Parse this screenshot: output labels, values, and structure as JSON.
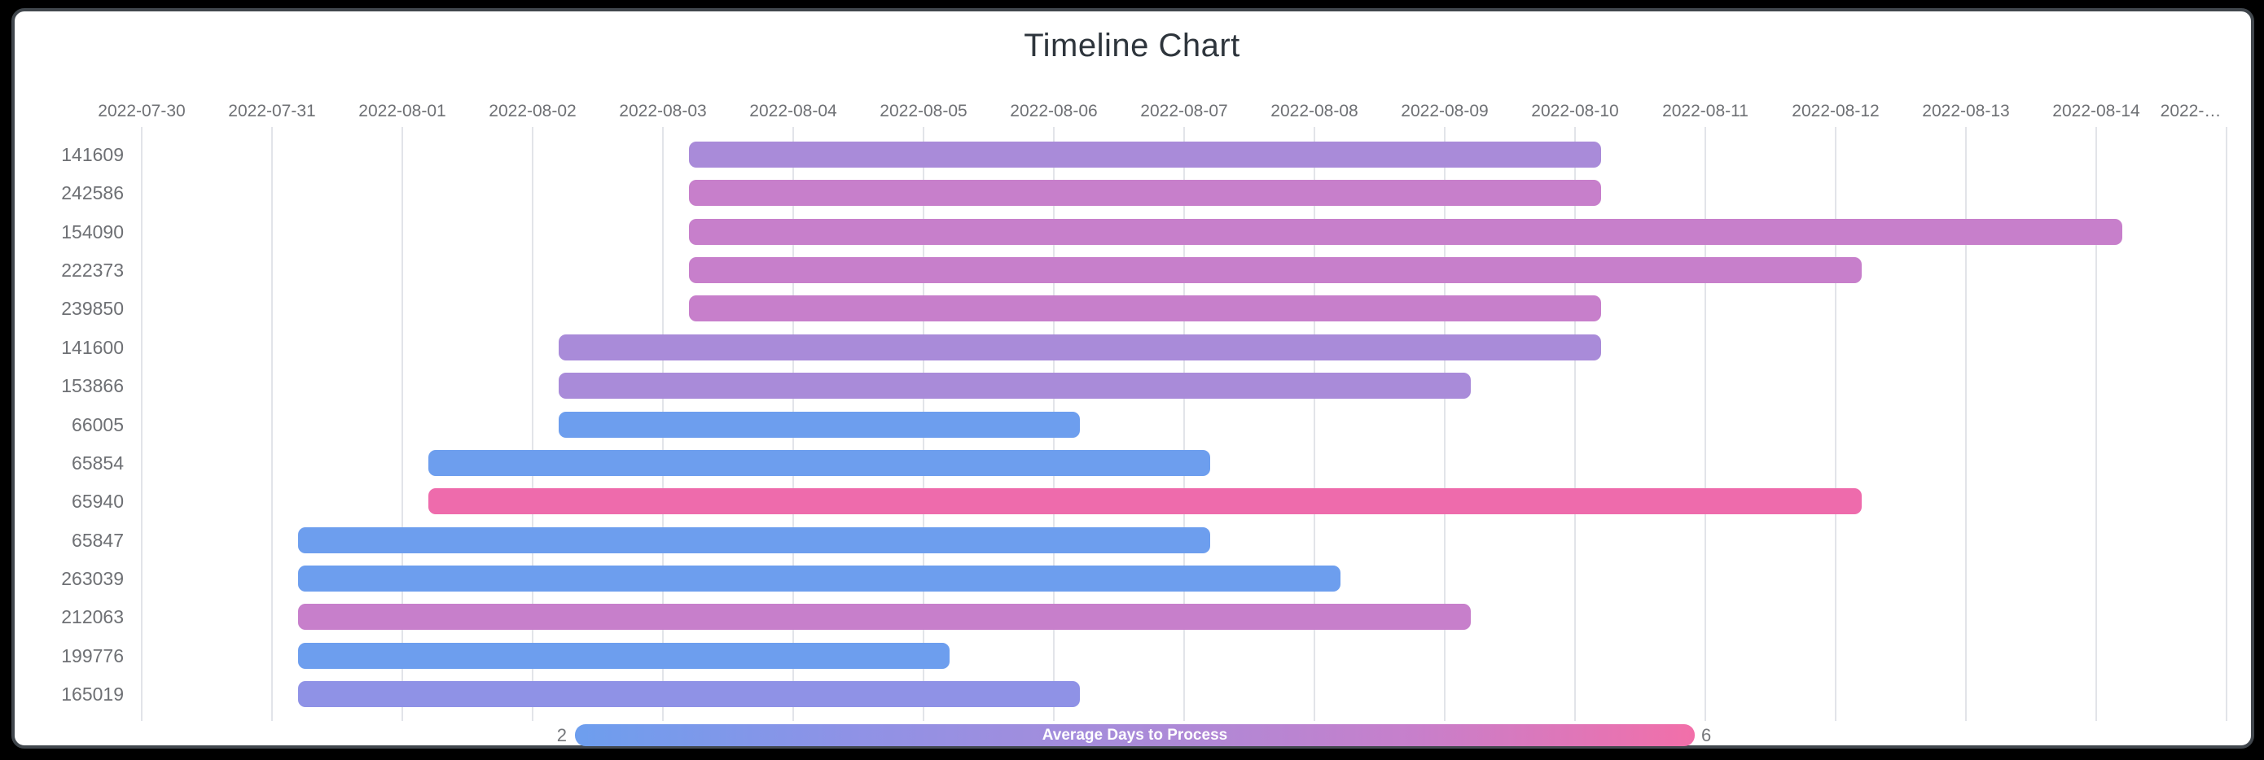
{
  "title": "Timeline Chart",
  "legend": {
    "min_label": "2",
    "max_label": "6",
    "title": "Average Days to Process",
    "gradient": [
      "#6d9eee",
      "#8f92e6",
      "#a98bd9",
      "#c77fcb",
      "#f26fa9"
    ]
  },
  "colors": {
    "page_bg": "#000000",
    "card_bg": "#ffffff",
    "card_border": "#41474d",
    "grid": "#e2e4e9",
    "axis_text": "#6e7074",
    "title_text": "#2e353c",
    "legend_value_text": "#75777b",
    "legend_title_text": "#ffffff",
    "bar_blue": "#6d9eee",
    "bar_violet": "#8f92e6",
    "bar_purple": "#a98bd9",
    "bar_orchid": "#c77fcb",
    "bar_pink": "#ee6bac"
  },
  "chart_data": {
    "type": "timeline",
    "title": "Timeline Chart",
    "x_ticks": [
      {
        "label": "2022-07-30"
      },
      {
        "label": "2022-07-31"
      },
      {
        "label": "2022-08-01"
      },
      {
        "label": "2022-08-02"
      },
      {
        "label": "2022-08-03"
      },
      {
        "label": "2022-08-04"
      },
      {
        "label": "2022-08-05"
      },
      {
        "label": "2022-08-06"
      },
      {
        "label": "2022-08-07"
      },
      {
        "label": "2022-08-08"
      },
      {
        "label": "2022-08-09"
      },
      {
        "label": "2022-08-10"
      },
      {
        "label": "2022-08-11"
      },
      {
        "label": "2022-08-12"
      },
      {
        "label": "2022-08-13"
      },
      {
        "label": "2022-08-14"
      },
      {
        "label": "2022-…",
        "truncated": true
      }
    ],
    "colorbar": {
      "title": "Average Days to Process",
      "min": 2,
      "max": 6
    },
    "bars": [
      {
        "label": "141609",
        "start": "2022-08-03",
        "end": "2022-08-10",
        "duration_days": 7,
        "start_day_offset": 4.2,
        "end_day_offset": 11.2,
        "color": "#a98bd9",
        "avg_days_to_process_est": 4
      },
      {
        "label": "242586",
        "start": "2022-08-03",
        "end": "2022-08-10",
        "duration_days": 7,
        "start_day_offset": 4.2,
        "end_day_offset": 11.2,
        "color": "#c77fcb",
        "avg_days_to_process_est": 5
      },
      {
        "label": "154090",
        "start": "2022-08-03",
        "end": "2022-08-14",
        "duration_days": 11,
        "start_day_offset": 4.2,
        "end_day_offset": 15.2,
        "color": "#c77fcb",
        "avg_days_to_process_est": 5
      },
      {
        "label": "222373",
        "start": "2022-08-03",
        "end": "2022-08-12",
        "duration_days": 9,
        "start_day_offset": 4.2,
        "end_day_offset": 13.2,
        "color": "#c77fcb",
        "avg_days_to_process_est": 5
      },
      {
        "label": "239850",
        "start": "2022-08-03",
        "end": "2022-08-10",
        "duration_days": 7,
        "start_day_offset": 4.2,
        "end_day_offset": 11.2,
        "color": "#c77fcb",
        "avg_days_to_process_est": 5
      },
      {
        "label": "141600",
        "start": "2022-08-02",
        "end": "2022-08-10",
        "duration_days": 8,
        "start_day_offset": 3.2,
        "end_day_offset": 11.2,
        "color": "#a98bd9",
        "avg_days_to_process_est": 4
      },
      {
        "label": "153866",
        "start": "2022-08-02",
        "end": "2022-08-09",
        "duration_days": 7,
        "start_day_offset": 3.2,
        "end_day_offset": 10.2,
        "color": "#a98bd9",
        "avg_days_to_process_est": 4
      },
      {
        "label": "66005",
        "start": "2022-08-02",
        "end": "2022-08-06",
        "duration_days": 4,
        "start_day_offset": 3.2,
        "end_day_offset": 7.2,
        "color": "#6d9eee",
        "avg_days_to_process_est": 2
      },
      {
        "label": "65854",
        "start": "2022-08-01",
        "end": "2022-08-07",
        "duration_days": 6,
        "start_day_offset": 2.2,
        "end_day_offset": 8.2,
        "color": "#6d9eee",
        "avg_days_to_process_est": 2
      },
      {
        "label": "65940",
        "start": "2022-08-01",
        "end": "2022-08-12",
        "duration_days": 11,
        "start_day_offset": 2.2,
        "end_day_offset": 13.2,
        "color": "#ee6bac",
        "avg_days_to_process_est": 6
      },
      {
        "label": "65847",
        "start": "2022-07-31",
        "end": "2022-08-07",
        "duration_days": 7,
        "start_day_offset": 1.2,
        "end_day_offset": 8.2,
        "color": "#6d9eee",
        "avg_days_to_process_est": 2
      },
      {
        "label": "263039",
        "start": "2022-07-31",
        "end": "2022-08-08",
        "duration_days": 8,
        "start_day_offset": 1.2,
        "end_day_offset": 9.2,
        "color": "#6d9eee",
        "avg_days_to_process_est": 2
      },
      {
        "label": "212063",
        "start": "2022-07-31",
        "end": "2022-08-09",
        "duration_days": 9,
        "start_day_offset": 1.2,
        "end_day_offset": 10.2,
        "color": "#c77fcb",
        "avg_days_to_process_est": 5
      },
      {
        "label": "199776",
        "start": "2022-07-31",
        "end": "2022-08-05",
        "duration_days": 5,
        "start_day_offset": 1.2,
        "end_day_offset": 6.2,
        "color": "#6d9eee",
        "avg_days_to_process_est": 2
      },
      {
        "label": "165019",
        "start": "2022-07-31",
        "end": "2022-08-06",
        "duration_days": 6,
        "start_day_offset": 1.2,
        "end_day_offset": 7.2,
        "color": "#8f92e6",
        "avg_days_to_process_est": 3
      }
    ]
  }
}
